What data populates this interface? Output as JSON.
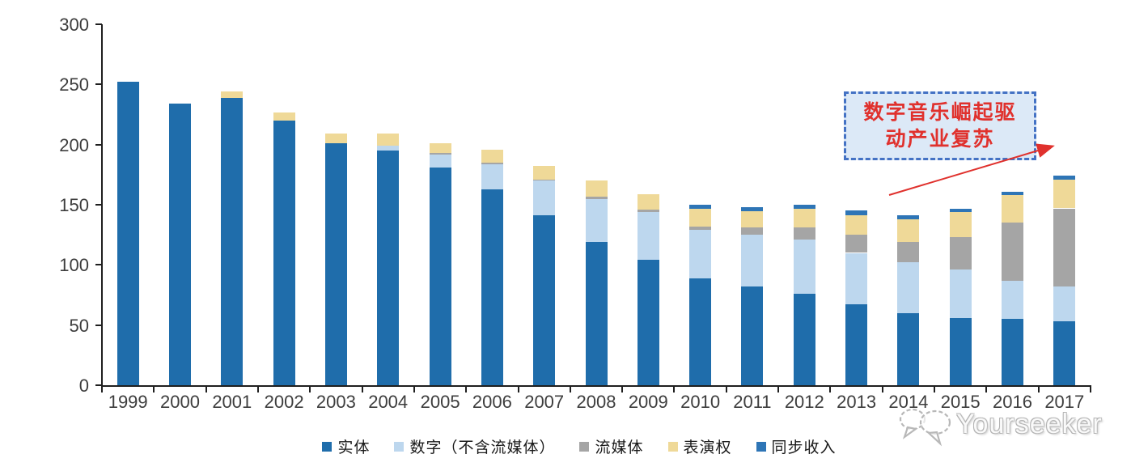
{
  "chart_data": {
    "type": "bar",
    "variant": "stacked",
    "title": "",
    "xlabel": "",
    "ylabel": "",
    "ylim": [
      0,
      300
    ],
    "yticks": [
      0,
      50,
      100,
      150,
      200,
      250,
      300
    ],
    "grid": false,
    "legend_position": "bottom",
    "categories": [
      "1999",
      "2000",
      "2001",
      "2002",
      "2003",
      "2004",
      "2005",
      "2006",
      "2007",
      "2008",
      "2009",
      "2010",
      "2011",
      "2012",
      "2013",
      "2014",
      "2015",
      "2016",
      "2017"
    ],
    "series": [
      {
        "name": "实体",
        "color": "#1f6dab",
        "values": [
          252,
          234,
          239,
          220,
          201,
          195,
          181,
          163,
          141,
          119,
          104,
          89,
          82,
          76,
          67,
          60,
          56,
          55,
          53
        ]
      },
      {
        "name": "数字（不含流媒体）",
        "color": "#bdd7ee",
        "values": [
          0,
          0,
          0,
          0,
          0,
          4,
          11,
          21,
          29,
          36,
          40,
          40,
          43,
          45,
          43,
          42,
          40,
          32,
          29
        ]
      },
      {
        "name": "流媒体",
        "color": "#a5a5a5",
        "values": [
          0,
          0,
          0,
          0,
          0,
          0,
          1,
          1,
          1,
          2,
          2,
          3,
          6,
          10,
          15,
          17,
          27,
          48,
          65
        ]
      },
      {
        "name": "表演权",
        "color": "#efd998",
        "values": [
          0,
          0,
          5,
          7,
          8,
          10,
          8,
          11,
          11,
          13,
          13,
          15,
          14,
          16,
          16,
          19,
          21,
          23,
          24
        ]
      },
      {
        "name": "同步收入",
        "color": "#2e75b6",
        "values": [
          0,
          0,
          0,
          0,
          0,
          0,
          0,
          0,
          0,
          0,
          0,
          3,
          3,
          3,
          4,
          3,
          3,
          3,
          3
        ]
      }
    ]
  },
  "annotation": {
    "line1": "数字音乐崛起驱",
    "line2": "动产业复苏",
    "text_color": "#e0312d",
    "box_fill": "#dce9f7",
    "border_color": "#4472c4",
    "arrow_color": "#e0312d"
  },
  "watermark": {
    "text": "Yourseeker"
  }
}
